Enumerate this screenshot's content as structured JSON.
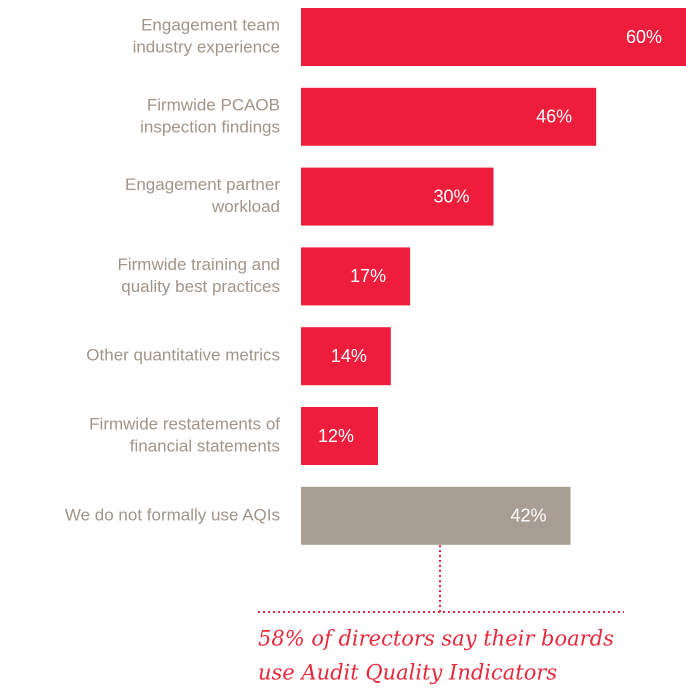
{
  "chart_data": {
    "type": "bar",
    "orientation": "horizontal",
    "categories": [
      [
        "Engagement team",
        "industry experience"
      ],
      [
        "Firmwide PCAOB",
        "inspection findings"
      ],
      [
        "Engagement partner",
        "workload"
      ],
      [
        "Firmwide training and",
        "quality best practices"
      ],
      [
        "Other quantitative metrics"
      ],
      [
        "Firmwide restatements of",
        "financial statements"
      ],
      [
        "We do not formally use AQIs"
      ]
    ],
    "values": [
      60,
      46,
      30,
      17,
      14,
      12,
      42
    ],
    "value_labels": [
      "60%",
      "46%",
      "30%",
      "17%",
      "14%",
      "12%",
      "42%"
    ],
    "colors": [
      "#ee1d3b",
      "#ee1d3b",
      "#ee1d3b",
      "#ee1d3b",
      "#ee1d3b",
      "#ee1d3b",
      "#a89d93"
    ],
    "annotation": [
      "58% of directors say their boards",
      "use Audit Quality Indicators"
    ]
  }
}
